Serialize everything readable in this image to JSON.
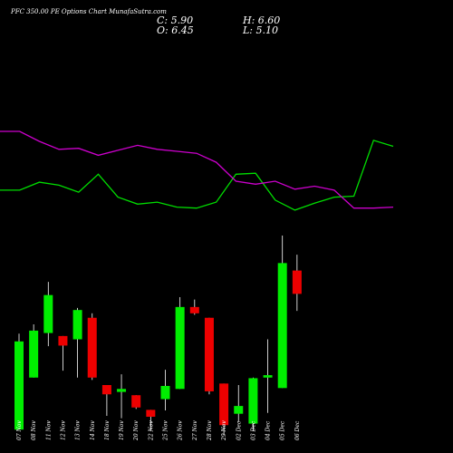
{
  "header": {
    "title": "PFC 350.00  PE Options  Chart MunafaSutra.com",
    "close": "C: 5.90",
    "high": "H: 6.60",
    "open": "O: 6.45",
    "low": "L: 5.10"
  },
  "chart_data": {
    "type": "candlestick",
    "colors": {
      "up": "#00ee00",
      "down": "#ee0000",
      "upper_line": "#00dd00",
      "lower_line": "#cc00cc",
      "wick": "#ffffff",
      "background": "#000000"
    },
    "candles": [
      {
        "date": "07 Nov",
        "open": 4.85,
        "high": 8.06,
        "low": 4.85,
        "close": 7.8
      },
      {
        "date": "08 Nov",
        "open": 6.59,
        "high": 8.37,
        "low": 6.59,
        "close": 8.16
      },
      {
        "date": "11 Nov",
        "open": 8.08,
        "high": 9.79,
        "low": 7.64,
        "close": 9.35
      },
      {
        "date": "12 Nov",
        "open": 7.98,
        "high": 7.98,
        "low": 6.82,
        "close": 7.66
      },
      {
        "date": "13 Nov",
        "open": 7.87,
        "high": 8.92,
        "low": 6.59,
        "close": 8.85
      },
      {
        "date": "14 Nov",
        "open": 8.59,
        "high": 8.74,
        "low": 6.51,
        "close": 6.59
      },
      {
        "date": "18 Nov",
        "open": 6.34,
        "high": 6.34,
        "low": 5.31,
        "close": 6.03
      },
      {
        "date": "19 Nov",
        "open": 6.11,
        "high": 6.7,
        "low": 5.23,
        "close": 6.21
      },
      {
        "date": "20 Nov",
        "open": 6.0,
        "high": 6.0,
        "low": 5.54,
        "close": 5.59
      },
      {
        "date": "22 Nov",
        "open": 5.51,
        "high": 5.51,
        "low": 4.8,
        "close": 5.28
      },
      {
        "date": "25 Nov",
        "open": 5.87,
        "high": 6.85,
        "low": 5.49,
        "close": 6.31
      },
      {
        "date": "26 Nov",
        "open": 6.21,
        "high": 9.28,
        "low": 6.21,
        "close": 8.95
      },
      {
        "date": "27 Nov",
        "open": 8.95,
        "high": 9.2,
        "low": 8.69,
        "close": 8.74
      },
      {
        "date": "28 Nov",
        "open": 8.59,
        "high": 8.59,
        "low": 6.03,
        "close": 6.13
      },
      {
        "date": "29 Nov",
        "open": 6.39,
        "high": 6.39,
        "low": 4.67,
        "close": 5.0
      },
      {
        "date": "02 Dec",
        "open": 5.38,
        "high": 6.34,
        "low": 5.1,
        "close": 5.64
      },
      {
        "date": "03 Dec",
        "open": 5.05,
        "high": 6.59,
        "low": 4.8,
        "close": 6.57
      },
      {
        "date": "04 Dec",
        "open": 6.59,
        "high": 7.87,
        "low": 5.41,
        "close": 6.67
      },
      {
        "date": "05 Dec",
        "open": 6.24,
        "high": 11.34,
        "low": 6.24,
        "close": 10.42
      },
      {
        "date": "06 Dec",
        "open": 10.17,
        "high": 10.7,
        "low": 8.82,
        "close": 9.39
      }
    ],
    "upper_line": [
      38.5,
      38.5,
      39.3,
      39.0,
      38.3,
      40.1,
      37.8,
      37.1,
      37.3,
      36.8,
      36.7,
      37.3,
      40.1,
      40.2,
      37.5,
      36.5,
      37.2,
      37.8,
      37.9,
      43.5,
      42.9
    ],
    "lower_line": [
      44.4,
      44.4,
      43.4,
      42.6,
      42.7,
      42.0,
      42.5,
      43.0,
      42.6,
      42.4,
      42.2,
      41.3,
      39.4,
      39.1,
      39.4,
      38.6,
      38.9,
      38.5,
      36.7,
      36.7,
      36.8
    ]
  }
}
